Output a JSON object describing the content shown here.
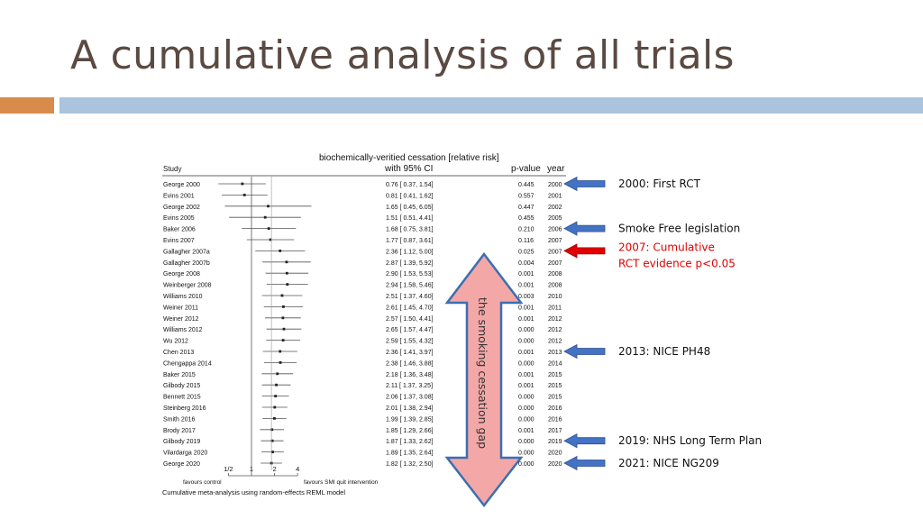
{
  "slide": {
    "title": "A cumulative analysis of all trials"
  },
  "colors": {
    "title": "#5a4a42",
    "accent_orange": "#d98b4c",
    "accent_blue": "#a9c4dc",
    "arrow_blue": "#4472c4",
    "arrow_red": "#e00000",
    "gap_fill": "#f4a7a7"
  },
  "chart_data": {
    "type": "forest",
    "title_line1": "biochemically-veritied cessation [relative risk]",
    "title_line2": "with 95% CI",
    "columns": {
      "study": "Study",
      "pvalue": "p-value",
      "year": "year"
    },
    "x_scale": "log",
    "x_ticks": [
      "1/2",
      "1",
      "2",
      "4"
    ],
    "x_tick_values": [
      0.5,
      1,
      2,
      4
    ],
    "favours_left": "favours control",
    "favours_right": "favours SMI quit intervention",
    "footer": "Cumulative meta-analysis using random-effects REML model",
    "rows": [
      {
        "study": "George 2000",
        "rr": 0.76,
        "lo": 0.37,
        "hi": 1.54,
        "ci": "0.76 [ 0.37,  1.54]",
        "p": "0.445",
        "year": "2000"
      },
      {
        "study": "Evins 2001",
        "rr": 0.81,
        "lo": 0.41,
        "hi": 1.62,
        "ci": "0.81 [ 0.41,  1.62]",
        "p": "0.557",
        "year": "2001"
      },
      {
        "study": "George 2002",
        "rr": 1.65,
        "lo": 0.45,
        "hi": 6.05,
        "ci": "1.65 [ 0.45,  6.05]",
        "p": "0.447",
        "year": "2002"
      },
      {
        "study": "Evins 2005",
        "rr": 1.51,
        "lo": 0.51,
        "hi": 4.41,
        "ci": "1.51 [ 0.51,  4.41]",
        "p": "0.455",
        "year": "2005"
      },
      {
        "study": "Baker 2006",
        "rr": 1.68,
        "lo": 0.75,
        "hi": 3.81,
        "ci": "1.68 [ 0.75,  3.81]",
        "p": "0.210",
        "year": "2006"
      },
      {
        "study": "Evins 2007",
        "rr": 1.77,
        "lo": 0.87,
        "hi": 3.61,
        "ci": "1.77 [ 0.87,  3.61]",
        "p": "0.116",
        "year": "2007"
      },
      {
        "study": "Gallagher 2007a",
        "rr": 2.36,
        "lo": 1.12,
        "hi": 5.0,
        "ci": "2.36 [ 1.12,  5.00]",
        "p": "0.025",
        "year": "2007"
      },
      {
        "study": "Gallagher 2007b",
        "rr": 2.87,
        "lo": 1.39,
        "hi": 5.92,
        "ci": "2.87 [ 1.39,  5.92]",
        "p": "0.004",
        "year": "2007"
      },
      {
        "study": "George 2008",
        "rr": 2.9,
        "lo": 1.53,
        "hi": 5.53,
        "ci": "2.90 [ 1.53,  5.53]",
        "p": "0.001",
        "year": "2008"
      },
      {
        "study": "Weinberger 2008",
        "rr": 2.94,
        "lo": 1.58,
        "hi": 5.46,
        "ci": "2.94 [ 1.58,  5.46]",
        "p": "0.001",
        "year": "2008"
      },
      {
        "study": "Williams 2010",
        "rr": 2.51,
        "lo": 1.37,
        "hi": 4.6,
        "ci": "2.51 [ 1.37,  4.60]",
        "p": "0.003",
        "year": "2010"
      },
      {
        "study": "Weiner 2011",
        "rr": 2.61,
        "lo": 1.45,
        "hi": 4.7,
        "ci": "2.61 [ 1.45,  4.70]",
        "p": "0.001",
        "year": "2011"
      },
      {
        "study": "Weiner 2012",
        "rr": 2.57,
        "lo": 1.5,
        "hi": 4.41,
        "ci": "2.57 [ 1.50,  4.41]",
        "p": "0.001",
        "year": "2012"
      },
      {
        "study": "Williams 2012",
        "rr": 2.65,
        "lo": 1.57,
        "hi": 4.47,
        "ci": "2.65 [ 1.57,  4.47]",
        "p": "0.000",
        "year": "2012"
      },
      {
        "study": "Wu 2012",
        "rr": 2.59,
        "lo": 1.55,
        "hi": 4.32,
        "ci": "2.59 [ 1.55,  4.32]",
        "p": "0.000",
        "year": "2012"
      },
      {
        "study": "Chen 2013",
        "rr": 2.36,
        "lo": 1.41,
        "hi": 3.97,
        "ci": "2.36 [ 1.41,  3.97]",
        "p": "0.001",
        "year": "2013"
      },
      {
        "study": "Chengappa 2014",
        "rr": 2.38,
        "lo": 1.46,
        "hi": 3.88,
        "ci": "2.38 [ 1.46,  3.88]",
        "p": "0.000",
        "year": "2014"
      },
      {
        "study": "Baker 2015",
        "rr": 2.18,
        "lo": 1.36,
        "hi": 3.48,
        "ci": "2.18 [ 1.36,  3.48]",
        "p": "0.001",
        "year": "2015"
      },
      {
        "study": "Gilbody 2015",
        "rr": 2.11,
        "lo": 1.37,
        "hi": 3.25,
        "ci": "2.11 [ 1.37,  3.25]",
        "p": "0.001",
        "year": "2015"
      },
      {
        "study": "Bennett 2015",
        "rr": 2.06,
        "lo": 1.37,
        "hi": 3.08,
        "ci": "2.06 [ 1.37,  3.08]",
        "p": "0.000",
        "year": "2015"
      },
      {
        "study": "Steinberg 2016",
        "rr": 2.01,
        "lo": 1.38,
        "hi": 2.94,
        "ci": "2.01 [ 1.38,  2.94]",
        "p": "0.000",
        "year": "2016"
      },
      {
        "study": "Smith 2016",
        "rr": 1.99,
        "lo": 1.39,
        "hi": 2.85,
        "ci": "1.99 [ 1.39,  2.85]",
        "p": "0.000",
        "year": "2016"
      },
      {
        "study": "Brody 2017",
        "rr": 1.85,
        "lo": 1.29,
        "hi": 2.66,
        "ci": "1.85 [ 1.29,  2.66]",
        "p": "0.001",
        "year": "2017"
      },
      {
        "study": "Gilbody 2019",
        "rr": 1.87,
        "lo": 1.33,
        "hi": 2.62,
        "ci": "1.87 [ 1.33,  2.62]",
        "p": "0.000",
        "year": "2019"
      },
      {
        "study": "Vilardarga 2020",
        "rr": 1.89,
        "lo": 1.35,
        "hi": 2.64,
        "ci": "1.89 [ 1.35,  2.64]",
        "p": "0.000",
        "year": "2020"
      },
      {
        "study": "George 2020",
        "rr": 1.82,
        "lo": 1.32,
        "hi": 2.5,
        "ci": "1.82 [ 1.32,  2.50]",
        "p": "0.000",
        "year": "2020"
      }
    ]
  },
  "gap_label": "the smoking cessation gap",
  "annotations": [
    {
      "row": 0,
      "color": "blue",
      "lines": [
        "2000: First RCT"
      ]
    },
    {
      "row": 4,
      "color": "blue",
      "lines": [
        "Smoke Free legislation"
      ]
    },
    {
      "row": 6,
      "color": "red",
      "lines": [
        "2007: Cumulative",
        "RCT evidence p<0.05"
      ]
    },
    {
      "row": 15,
      "color": "blue",
      "lines": [
        "2013: NICE PH48"
      ]
    },
    {
      "row": 23,
      "color": "blue",
      "lines": [
        "2019: NHS Long Term Plan"
      ]
    },
    {
      "row": 25,
      "color": "blue",
      "lines": [
        "2021: NICE NG209"
      ]
    }
  ]
}
